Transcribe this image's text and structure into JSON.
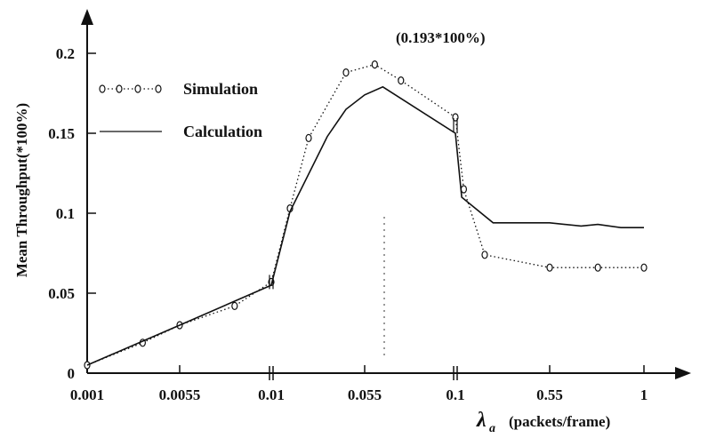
{
  "chart_data": {
    "type": "line",
    "title": "",
    "ylabel": "Mean Throughput(*100%)",
    "xlabel": {
      "symbol": "λ",
      "subscript": "a",
      "unit": "(packets/frame)"
    },
    "x_ticks": [
      "0.001",
      "0.0055",
      "0.01",
      "0.055",
      "0.1",
      "0.55",
      "1"
    ],
    "y_ticks": [
      {
        "value": 0,
        "label": "0"
      },
      {
        "value": 0.05,
        "label": "0.05"
      },
      {
        "value": 0.1,
        "label": "0.1"
      },
      {
        "value": 0.15,
        "label": "0.15"
      },
      {
        "value": 0.2,
        "label": "0.2"
      }
    ],
    "ylim": [
      0,
      0.23
    ],
    "x_scale": "piecewise-linear with axis breaks at 0.01 and 0.1",
    "annotation": {
      "text": "(0.193*100%)",
      "x": 0.06,
      "y": 0.193
    },
    "legend": {
      "placement": "top-left",
      "entries": [
        "Simulation",
        "Calculation"
      ]
    },
    "series": [
      {
        "name": "Simulation",
        "style": "dotted-circle-markers",
        "points": [
          {
            "x": 0.001,
            "y": 0.005
          },
          {
            "x": 0.0037,
            "y": 0.019
          },
          {
            "x": 0.0055,
            "y": 0.03
          },
          {
            "x": 0.0082,
            "y": 0.042
          },
          {
            "x": 0.01,
            "y": 0.057
          },
          {
            "x": 0.019,
            "y": 0.103
          },
          {
            "x": 0.028,
            "y": 0.147
          },
          {
            "x": 0.046,
            "y": 0.188
          },
          {
            "x": 0.06,
            "y": 0.193
          },
          {
            "x": 0.073,
            "y": 0.183
          },
          {
            "x": 0.1,
            "y": 0.16
          },
          {
            "x": 0.14,
            "y": 0.115
          },
          {
            "x": 0.24,
            "y": 0.074
          },
          {
            "x": 0.55,
            "y": 0.066
          },
          {
            "x": 0.78,
            "y": 0.066
          },
          {
            "x": 1,
            "y": 0.066
          }
        ]
      },
      {
        "name": "Calculation",
        "style": "solid",
        "points": [
          {
            "x": 0.001,
            "y": 0.005
          },
          {
            "x": 0.0055,
            "y": 0.03
          },
          {
            "x": 0.01,
            "y": 0.055
          },
          {
            "x": 0.019,
            "y": 0.101
          },
          {
            "x": 0.037,
            "y": 0.148
          },
          {
            "x": 0.046,
            "y": 0.165
          },
          {
            "x": 0.055,
            "y": 0.174
          },
          {
            "x": 0.064,
            "y": 0.179
          },
          {
            "x": 0.1,
            "y": 0.15
          },
          {
            "x": 0.13,
            "y": 0.11
          },
          {
            "x": 0.28,
            "y": 0.094
          },
          {
            "x": 0.55,
            "y": 0.094
          },
          {
            "x": 0.7,
            "y": 0.092
          },
          {
            "x": 0.78,
            "y": 0.093
          },
          {
            "x": 0.89,
            "y": 0.091
          },
          {
            "x": 1,
            "y": 0.091
          }
        ]
      }
    ]
  }
}
